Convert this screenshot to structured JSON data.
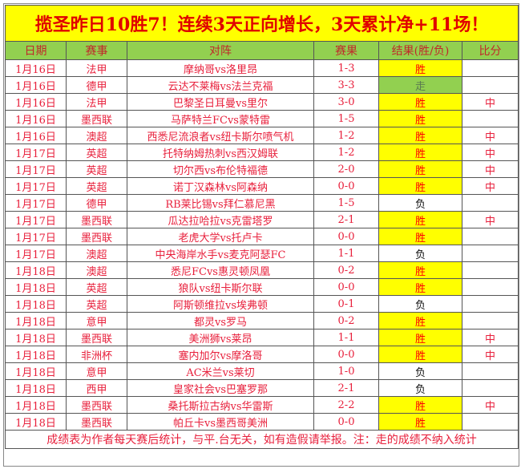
{
  "title": "揽圣昨日10胜7！连续3天正向增长，3天累计净+11场！",
  "headers": [
    "日期",
    "赛事",
    "对阵",
    "赛果",
    "结果(胜/负)",
    "比分"
  ],
  "rows": [
    [
      "1月16日",
      "法甲",
      "摩纳哥vs洛里昂",
      "1-3",
      "胜",
      ""
    ],
    [
      "1月16日",
      "德甲",
      "云达不莱梅vs法兰克福",
      "3-3",
      "走",
      ""
    ],
    [
      "1月16日",
      "法甲",
      "巴黎圣日耳曼vs里尔",
      "3-0",
      "胜",
      "中"
    ],
    [
      "1月16日",
      "墨西联",
      "马萨特兰FCvs蒙特雷",
      "1-5",
      "胜",
      ""
    ],
    [
      "1月16日",
      "澳超",
      "西悉尼流浪者vs纽卡斯尔喷气机",
      "1-2",
      "胜",
      "中"
    ],
    [
      "1月17日",
      "英超",
      "托特纳姆热刺vs西汉姆联",
      "1-2",
      "胜",
      "中"
    ],
    [
      "1月17日",
      "英超",
      "切尔西vs布伦特福德",
      "2-0",
      "胜",
      "中"
    ],
    [
      "1月17日",
      "英超",
      "诺丁汉森林vs阿森纳",
      "0-0",
      "胜",
      "中"
    ],
    [
      "1月17日",
      "德甲",
      "RB莱比锡vs拜仁慕尼黑",
      "1-5",
      "负",
      ""
    ],
    [
      "1月17日",
      "墨西联",
      "瓜达拉哈拉vs克雷塔罗",
      "2-1",
      "胜",
      "中"
    ],
    [
      "1月17日",
      "墨西联",
      "老虎大学vs托卢卡",
      "0-0",
      "胜",
      ""
    ],
    [
      "1月17日",
      "澳超",
      "中央海岸水手vs麦克阿瑟FC",
      "1-1",
      "负",
      ""
    ],
    [
      "1月18日",
      "澳超",
      "悉尼FCvs惠灵顿凤凰",
      "0-2",
      "胜",
      ""
    ],
    [
      "1月18日",
      "英超",
      "狼队vs纽卡斯尔联",
      "0-0",
      "胜",
      ""
    ],
    [
      "1月18日",
      "英超",
      "阿斯顿维拉vs埃弗顿",
      "0-1",
      "负",
      ""
    ],
    [
      "1月18日",
      "意甲",
      "都灵vs罗马",
      "0-2",
      "胜",
      ""
    ],
    [
      "1月18日",
      "墨西联",
      "美洲狮vs莱昂",
      "1-1",
      "胜",
      "中"
    ],
    [
      "1月18日",
      "非洲杯",
      "塞内加尔vs摩洛哥",
      "0-0",
      "胜",
      "中"
    ],
    [
      "1月18日",
      "意甲",
      "AC米兰vs莱切",
      "1-0",
      "负",
      ""
    ],
    [
      "1月18日",
      "西甲",
      "皇家社会vs巴塞罗那",
      "2-1",
      "负",
      ""
    ],
    [
      "1月18日",
      "墨西联",
      "桑托斯拉古纳vs华雷斯",
      "2-2",
      "胜",
      "中"
    ],
    [
      "1月18日",
      "墨西联",
      "帕丘卡vs墨西哥美洲",
      "0-0",
      "胜",
      ""
    ]
  ],
  "footer": "成绩表为作者每天赛后统计，与平.台无关，如有造假请举报。注：走的成绩不纳入统计",
  "colors": {
    "win_bg": "#ffff00",
    "push_bg": "#92d050",
    "header_bg": "#92d050",
    "text": "#e8203c"
  }
}
